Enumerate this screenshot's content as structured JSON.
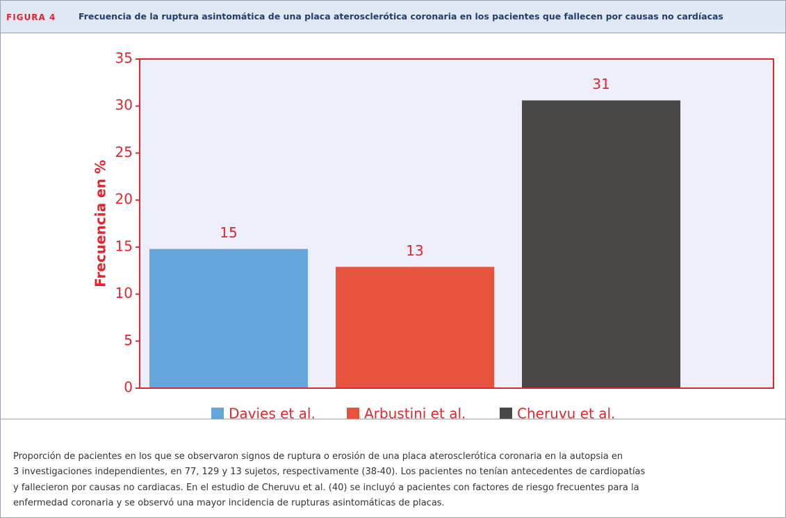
{
  "header": {
    "figure": "FIGURA 4",
    "title": "Frecuencia de la ruptura asintomática de una placa aterosclerótica coronaria en los pacientes que fallecen por causas no cardíacas"
  },
  "chart_data": {
    "type": "bar",
    "ylabel": "Frecuencia en %",
    "categories": [
      "Davies et al.",
      "Arbustini et al.",
      "Cheruvu et al."
    ],
    "values": [
      14.8,
      12.9,
      30.6
    ],
    "value_labels": [
      "15",
      "13",
      "31"
    ],
    "colors": [
      "#64a6dc",
      "#e8533f",
      "#4a4847"
    ],
    "ylim": [
      0,
      35
    ],
    "yticks": [
      0,
      5,
      10,
      15,
      20,
      25,
      30,
      35
    ],
    "grid": false
  },
  "caption": [
    "Proporción de pacientes en los que se observaron signos de ruptura o erosión de una placa aterosclerótica coronaria en la autopsia en",
    "3 investigaciones independientes, en 77, 129 y 13 sujetos, respectivamente (38-40). Los pacientes no tenían antecedentes de cardiopatías",
    "y fallecieron por causas no cardiacas. En el estudio de Cheruvu et al. (40) se incluyó a pacientes con factores de riesgo frecuentes para la",
    "enfermedad coronaria y se observó una mayor incidencia de rupturas asintomáticas de placas."
  ]
}
